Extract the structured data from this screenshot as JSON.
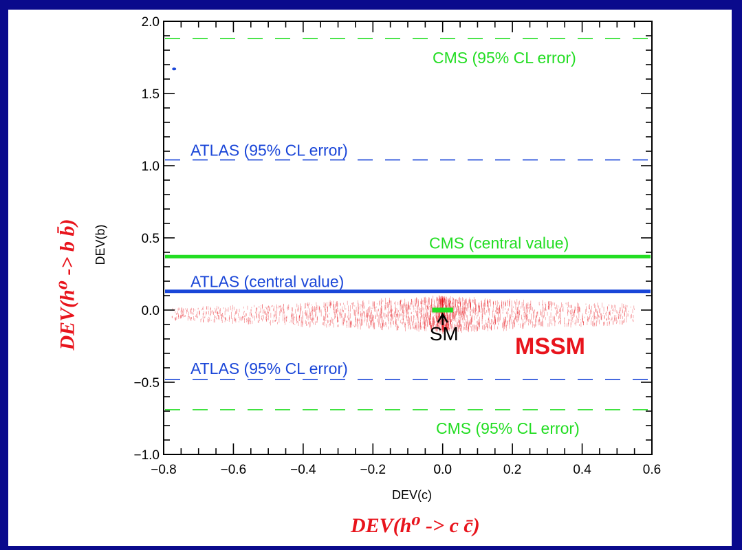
{
  "chart_data": {
    "type": "scatter",
    "xlabel": "DEV(c)",
    "ylabel": "DEV(b)",
    "xlim": [
      -0.8,
      0.6
    ],
    "ylim": [
      -1.0,
      2.0
    ],
    "xticks": [
      "−0.8",
      "−0.6",
      "−0.4",
      "−0.2",
      "0.0",
      "0.0",
      "0.2",
      "0.4",
      "0.6"
    ],
    "yticks": [
      "2.0",
      "1.5",
      "1.0",
      "0.5",
      "0.0",
      "−0.5",
      "−1.0"
    ],
    "big_xlabel": "DEV(h⁰ -> c c̄)",
    "big_ylabel": "DEV(h⁰ -> b b̄)",
    "reference_lines": [
      {
        "label": "CMS (95% CL error)",
        "y": 1.88,
        "color": "#22dd22",
        "style": "dashed"
      },
      {
        "label": "ATLAS (95% CL error)",
        "y": 1.04,
        "color": "#1a46d8",
        "style": "dashed"
      },
      {
        "label": "CMS (central value)",
        "y": 0.37,
        "color": "#22dd22",
        "style": "solid"
      },
      {
        "label": "ATLAS (central value)",
        "y": 0.13,
        "color": "#1a46d8",
        "style": "solid"
      },
      {
        "label": "ATLAS (95% CL error)",
        "y": -0.48,
        "color": "#1a46d8",
        "style": "dashed"
      },
      {
        "label": "CMS (95% CL error)",
        "y": -0.69,
        "color": "#22dd22",
        "style": "dashed"
      }
    ],
    "annotations": {
      "sm": "SM",
      "mssm": "MSSM"
    },
    "mssm_region": {
      "color": "#e8141c",
      "x_range": [
        -0.78,
        0.55
      ],
      "y_center": -0.03,
      "y_spread": 0.1
    },
    "sm_point": {
      "x": 0.0,
      "y": 0.0,
      "x_range": [
        -0.03,
        0.03
      ],
      "color": "#22dd22"
    },
    "outlier_point": {
      "x": -0.77,
      "y": 1.67,
      "color": "#1a46d8"
    }
  }
}
